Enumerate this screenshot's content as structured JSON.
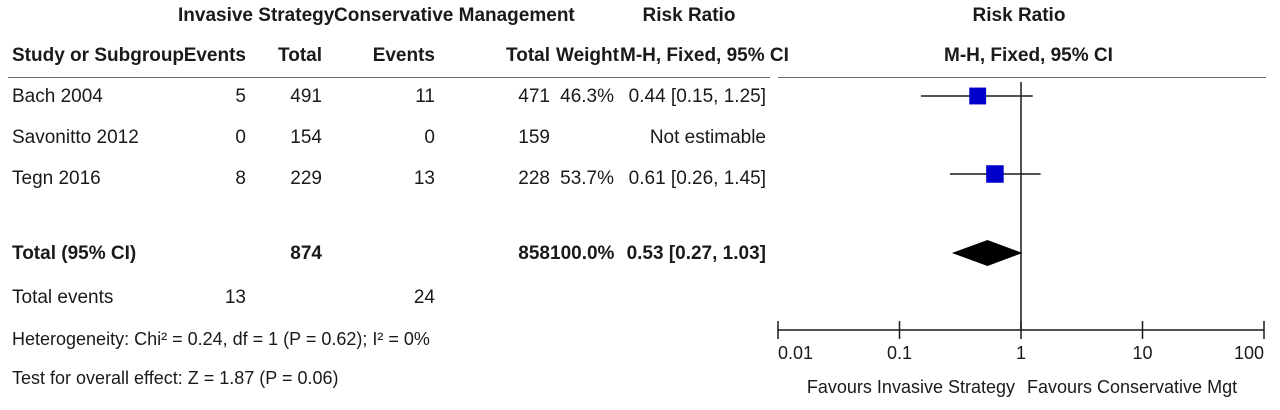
{
  "header": {
    "group1": "Invasive Strategy",
    "group2": "Conservative Management",
    "rr_title": "Risk Ratio",
    "plot_title": "Risk Ratio",
    "col_study": "Study or Subgroup",
    "col_ev1": "Events",
    "col_tot1": "Total",
    "col_ev2": "Events",
    "col_tot2": "Total",
    "col_weight": "Weight",
    "col_ci": "M-H, Fixed, 95% CI",
    "plot_subtitle": "M-H, Fixed, 95% CI"
  },
  "studies": [
    {
      "name": "Bach 2004",
      "ev1": "5",
      "tot1": "491",
      "ev2": "11",
      "tot2": "471",
      "weight": "46.3%",
      "ci": "0.44 [0.15, 1.25]"
    },
    {
      "name": "Savonitto 2012",
      "ev1": "0",
      "tot1": "154",
      "ev2": "0",
      "tot2": "159",
      "weight": "",
      "ci": "Not estimable"
    },
    {
      "name": "Tegn 2016",
      "ev1": "8",
      "tot1": "229",
      "ev2": "13",
      "tot2": "228",
      "weight": "53.7%",
      "ci": "0.61 [0.26, 1.45]"
    }
  ],
  "total": {
    "label": "Total (95% CI)",
    "tot1": "874",
    "tot2": "858",
    "weight": "100.0%",
    "ci": "0.53 [0.27, 1.03]"
  },
  "total_events": {
    "label": "Total events",
    "ev1": "13",
    "ev2": "24"
  },
  "footer": {
    "heterogeneity": "Heterogeneity: Chi² = 0.24, df = 1 (P = 0.62); I² = 0%",
    "overall": "Test for overall effect: Z = 1.87 (P = 0.06)"
  },
  "colors": {
    "marker": "#0000cc",
    "diamond": "#000000",
    "line": "#1a1a1a"
  },
  "chart_data": {
    "type": "forest",
    "scale": "log",
    "xlim": [
      0.01,
      100
    ],
    "x_ticks": [
      "0.01",
      "0.1",
      "1",
      "10",
      "100"
    ],
    "favours_left": "Favours Invasive Strategy",
    "favours_right": "Favours Conservative Mgt",
    "studies": [
      {
        "label": "Bach 2004",
        "rr": 0.44,
        "lo": 0.15,
        "hi": 1.25,
        "weight": 46.3
      },
      {
        "label": "Savonitto 2012",
        "rr": null,
        "lo": null,
        "hi": null,
        "weight": null
      },
      {
        "label": "Tegn 2016",
        "rr": 0.61,
        "lo": 0.26,
        "hi": 1.45,
        "weight": 53.7
      }
    ],
    "pooled": {
      "label": "Total (95% CI)",
      "rr": 0.53,
      "lo": 0.27,
      "hi": 1.03
    }
  }
}
